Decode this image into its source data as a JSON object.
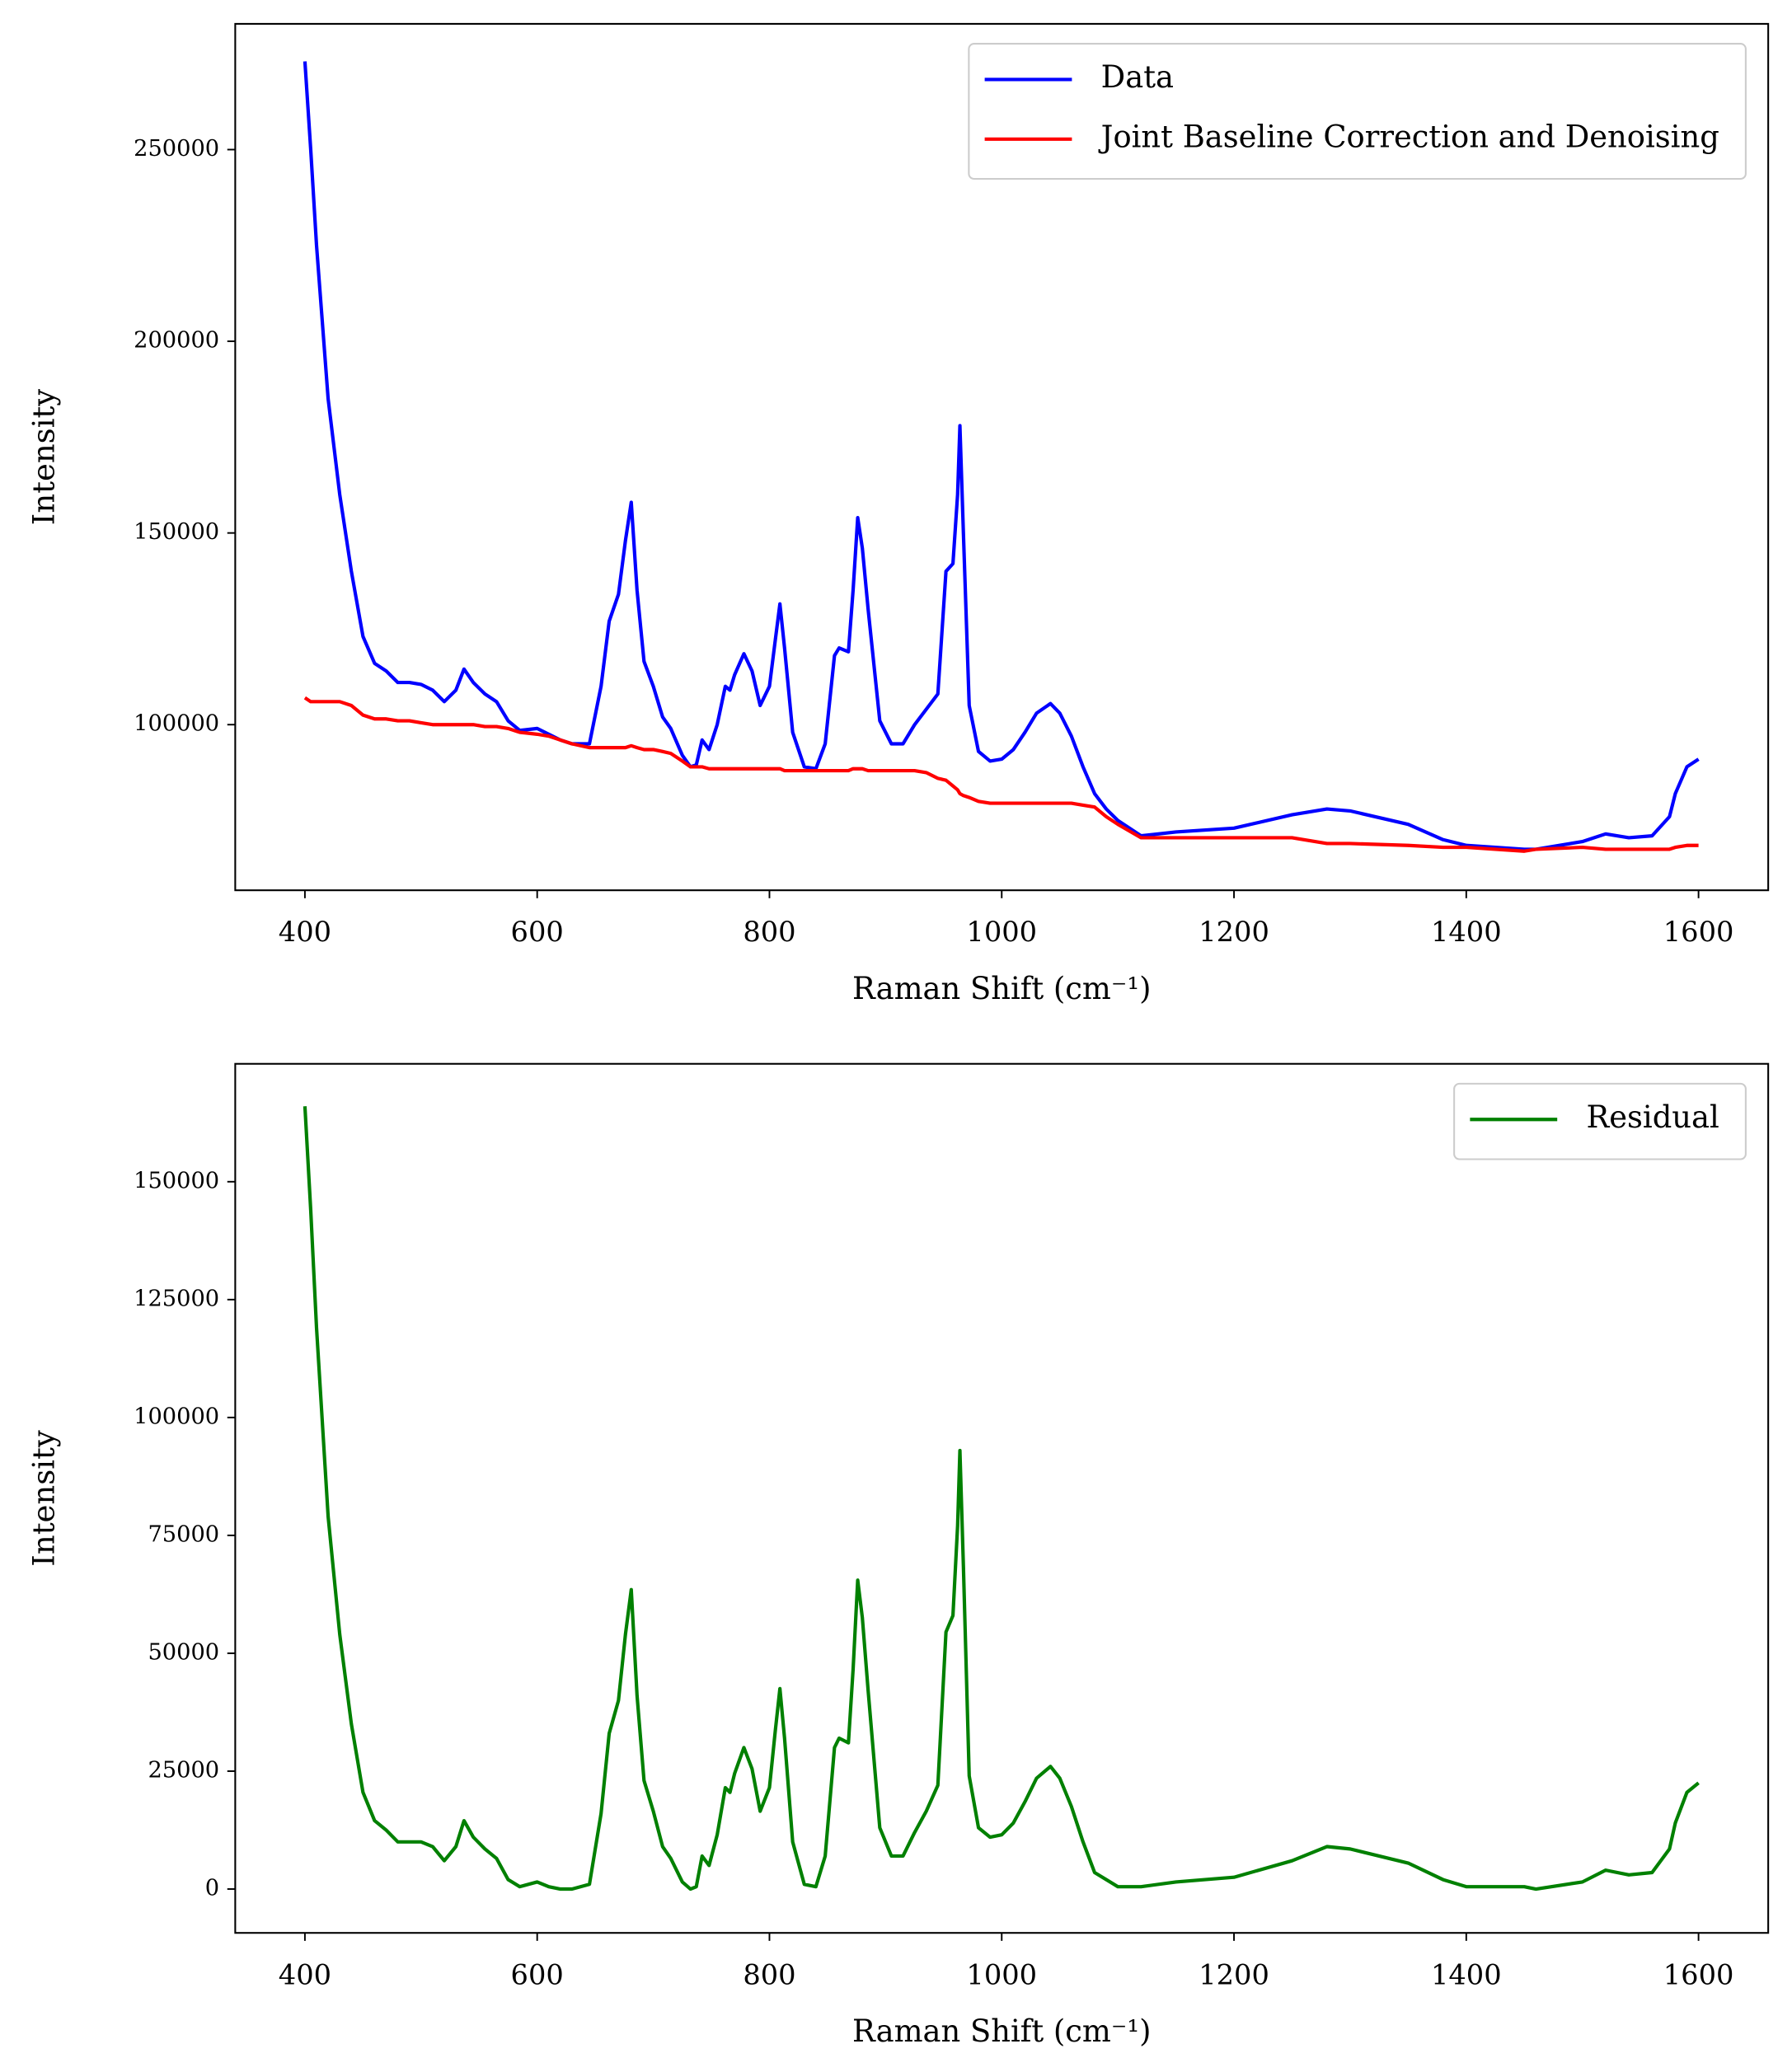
{
  "chart_data": [
    {
      "type": "line",
      "xlabel": "Raman Shift (cm⁻¹)",
      "ylabel": "Intensity",
      "legend": "upper right",
      "xlim": [
        340,
        1660
      ],
      "xticks": [
        400,
        600,
        800,
        1000,
        1200,
        1400,
        1600
      ],
      "ylim": [
        56800,
        282800
      ],
      "yticks": [
        100000,
        150000,
        200000,
        250000
      ],
      "x": [
        400,
        405,
        410,
        420,
        430,
        440,
        450,
        460,
        470,
        480,
        490,
        500,
        510,
        520,
        530,
        537,
        545,
        555,
        565,
        575,
        585,
        600,
        610,
        620,
        630,
        645,
        655,
        662,
        670,
        676,
        681,
        686,
        692,
        700,
        708,
        715,
        725,
        732,
        737,
        742,
        748,
        755,
        762,
        766,
        770,
        778,
        785,
        792,
        800,
        805,
        809,
        813,
        820,
        830,
        840,
        848,
        856,
        860,
        868,
        872,
        876,
        880,
        885,
        895,
        905,
        915,
        925,
        935,
        945,
        952,
        958,
        962,
        964,
        967,
        972,
        980,
        990,
        1000,
        1010,
        1020,
        1030,
        1042,
        1050,
        1060,
        1070,
        1080,
        1090,
        1100,
        1120,
        1150,
        1200,
        1250,
        1280,
        1300,
        1350,
        1380,
        1400,
        1450,
        1460,
        1500,
        1520,
        1540,
        1560,
        1575,
        1580,
        1590,
        1600
      ],
      "series": [
        {
          "name": "Data",
          "color": "#0000ff",
          "values": [
            273000,
            250000,
            225000,
            185000,
            160000,
            140000,
            123000,
            116000,
            114000,
            111000,
            111000,
            110500,
            109000,
            106000,
            109000,
            114500,
            111000,
            108000,
            106000,
            101000,
            98500,
            99000,
            97500,
            96000,
            95000,
            95000,
            110000,
            127000,
            134000,
            148000,
            158000,
            135000,
            116500,
            110000,
            102000,
            99000,
            92000,
            89000,
            89500,
            96000,
            93500,
            100000,
            110000,
            109000,
            113000,
            118500,
            114000,
            105000,
            110000,
            122000,
            131500,
            120000,
            98000,
            89000,
            88500,
            95000,
            118000,
            120000,
            119000,
            135000,
            154000,
            146000,
            130000,
            101000,
            95000,
            95000,
            100000,
            104000,
            108000,
            140000,
            142000,
            160000,
            178000,
            150000,
            105000,
            93000,
            90500,
            91000,
            93500,
            98000,
            103000,
            105500,
            103000,
            97000,
            89000,
            82000,
            78000,
            75000,
            71000,
            72000,
            73000,
            76500,
            78000,
            77500,
            74000,
            70000,
            68500,
            67500,
            67500,
            69500,
            71500,
            70500,
            71000,
            76000,
            82000,
            89000,
            91000
          ]
        },
        {
          "name": "Joint Baseline Correction and Denoising",
          "color": "#ff0000",
          "values": [
            107000,
            106000,
            106000,
            106000,
            106000,
            105000,
            102500,
            101500,
            101500,
            101000,
            101000,
            100500,
            100000,
            100000,
            100000,
            100000,
            100000,
            99500,
            99500,
            99000,
            98000,
            97500,
            97000,
            96000,
            95000,
            94000,
            94000,
            94000,
            94000,
            94000,
            94500,
            94000,
            93500,
            93500,
            93000,
            92500,
            90500,
            89000,
            89000,
            89000,
            88500,
            88500,
            88500,
            88500,
            88500,
            88500,
            88500,
            88500,
            88500,
            88500,
            88500,
            88000,
            88000,
            88000,
            88000,
            88000,
            88000,
            88000,
            88000,
            88500,
            88500,
            88500,
            88000,
            88000,
            88000,
            88000,
            88000,
            87500,
            86000,
            85500,
            84000,
            83000,
            82000,
            81500,
            81000,
            80000,
            79500,
            79500,
            79500,
            79500,
            79500,
            79500,
            79500,
            79500,
            79000,
            78500,
            76000,
            74000,
            70500,
            70500,
            70500,
            70500,
            69000,
            69000,
            68500,
            68000,
            68000,
            67000,
            67500,
            68000,
            67500,
            67500,
            67500,
            67500,
            68000,
            68500,
            68500
          ]
        }
      ]
    },
    {
      "type": "line",
      "xlabel": "Raman Shift (cm⁻¹)",
      "ylabel": "Intensity",
      "legend": "upper right",
      "xlim": [
        340,
        1660
      ],
      "xticks": [
        400,
        600,
        800,
        1000,
        1200,
        1400,
        1600
      ],
      "ylim": [
        -9300,
        175000
      ],
      "yticks": [
        0,
        25000,
        50000,
        75000,
        100000,
        125000,
        150000
      ],
      "x": [
        400,
        405,
        410,
        420,
        430,
        440,
        450,
        460,
        470,
        480,
        490,
        500,
        510,
        520,
        530,
        537,
        545,
        555,
        565,
        575,
        585,
        600,
        610,
        620,
        630,
        645,
        655,
        662,
        670,
        676,
        681,
        686,
        692,
        700,
        708,
        715,
        725,
        732,
        737,
        742,
        748,
        755,
        762,
        766,
        770,
        778,
        785,
        792,
        800,
        805,
        809,
        813,
        820,
        830,
        840,
        848,
        856,
        860,
        868,
        872,
        876,
        880,
        885,
        895,
        905,
        915,
        925,
        935,
        945,
        952,
        958,
        962,
        964,
        967,
        972,
        980,
        990,
        1000,
        1010,
        1020,
        1030,
        1042,
        1050,
        1060,
        1070,
        1080,
        1090,
        1100,
        1120,
        1150,
        1200,
        1250,
        1280,
        1300,
        1350,
        1380,
        1400,
        1450,
        1460,
        1500,
        1520,
        1540,
        1560,
        1575,
        1580,
        1590,
        1600
      ],
      "series": [
        {
          "name": "Residual",
          "color": "#008000",
          "values": [
            166000,
            144000,
            119000,
            79000,
            54000,
            35000,
            20500,
            14500,
            12500,
            10000,
            10000,
            10000,
            9000,
            6000,
            9000,
            14500,
            11000,
            8500,
            6500,
            2000,
            500,
            1500,
            500,
            0,
            0,
            1000,
            16000,
            33000,
            40000,
            54000,
            63500,
            41000,
            23000,
            16500,
            9000,
            6500,
            1500,
            0,
            500,
            7000,
            5000,
            11500,
            21500,
            20500,
            24500,
            30000,
            25500,
            16500,
            21500,
            33500,
            42500,
            32000,
            10000,
            1000,
            500,
            7000,
            30000,
            32000,
            31000,
            46500,
            65500,
            57500,
            42000,
            13000,
            7000,
            7000,
            12000,
            16500,
            22000,
            54500,
            58000,
            77000,
            93000,
            68500,
            24000,
            13000,
            11000,
            11500,
            14000,
            18500,
            23500,
            26000,
            23500,
            17500,
            10000,
            3500,
            2000,
            500,
            500,
            1500,
            2500,
            6000,
            9000,
            8500,
            5500,
            2000,
            500,
            500,
            0,
            1500,
            4000,
            3000,
            3500,
            8500,
            14000,
            20500,
            22500
          ]
        }
      ]
    }
  ]
}
